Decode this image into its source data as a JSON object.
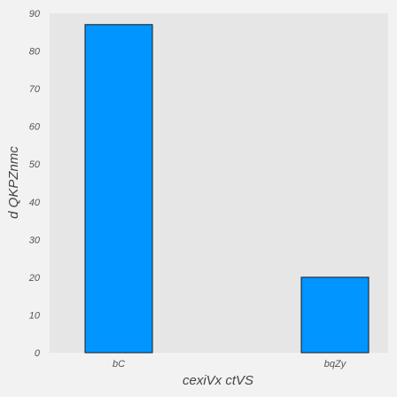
{
  "chart_data": {
    "type": "bar",
    "categories": [
      "bC",
      "bqZy"
    ],
    "values": [
      87,
      20
    ],
    "xlabel": "cexiVx  ctVS",
    "ylabel": "d  QKPZnmc",
    "ylim": [
      0,
      90
    ],
    "yticks": [
      0,
      10,
      20,
      30,
      40,
      50,
      60,
      70,
      80,
      90
    ],
    "grid": false,
    "colors": {
      "bar": "#0095ff",
      "bar_edge": "#1a1a1a",
      "plot_bg": "#e6e6e6",
      "figure_bg": "#f2f2f2"
    }
  }
}
